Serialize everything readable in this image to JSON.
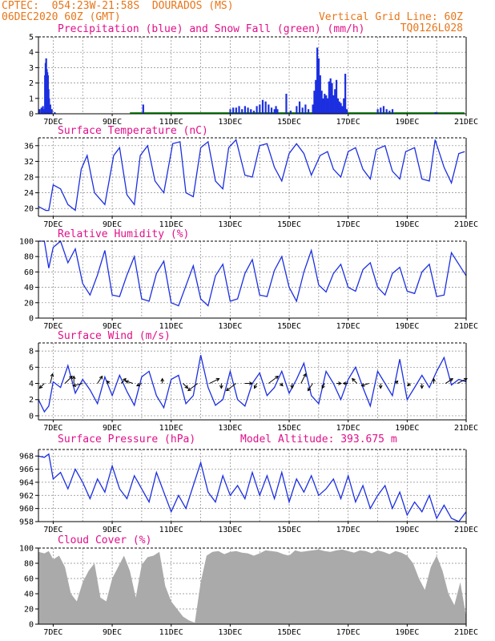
{
  "header": {
    "line1_left": "CPTEC:  054:23W-21:58S  DOURADOS (MS)",
    "line2_left": "06DEC2020 60Z (GMT)",
    "line2_right": "Vertical Grid Line: 60Z",
    "line3_right": "TQ0126L028"
  },
  "colors": {
    "header": "#e8761a",
    "panel_title": "#e0108a",
    "series_line": "#1c2fe0",
    "precip_bar": "#1c2fe0",
    "snow_line": "#1a9a1a",
    "cloud_fill": "#aaaaaa",
    "wind_arrow": "#000000",
    "grid": "#888888"
  },
  "x_axis": {
    "dates": [
      "7DEC",
      "9DEC",
      "11DEC",
      "13DEC",
      "15DEC",
      "17DEC",
      "19DEC",
      "21DEC"
    ],
    "start_day": 6.5,
    "end_day": 21.0
  },
  "chart_data": [
    {
      "type": "bar",
      "title": "Precipitation (blue) and Snow Fall (green) (mm/h)",
      "ylim": [
        0,
        5
      ],
      "yticks": [
        0,
        1,
        2,
        3,
        4,
        5
      ],
      "snow_values": "all 0",
      "series": [
        {
          "name": "Precipitation",
          "x": [
            6.54,
            6.6,
            6.65,
            6.7,
            6.72,
            6.74,
            6.76,
            6.78,
            6.8,
            6.82,
            6.84,
            6.86,
            6.9,
            6.95,
            7.05,
            10.05,
            13.0,
            13.1,
            13.2,
            13.3,
            13.4,
            13.5,
            13.6,
            13.7,
            13.8,
            13.9,
            14.0,
            14.1,
            14.2,
            14.3,
            14.4,
            14.5,
            14.55,
            14.6,
            14.9,
            15.05,
            15.25,
            15.35,
            15.45,
            15.55,
            15.65,
            15.8,
            15.85,
            15.9,
            15.95,
            16.0,
            16.05,
            16.1,
            16.15,
            16.2,
            16.25,
            16.3,
            16.35,
            16.4,
            16.45,
            16.5,
            16.55,
            16.6,
            16.65,
            16.7,
            16.75,
            16.8,
            16.85,
            16.9,
            16.95,
            18.0,
            18.1,
            18.2,
            18.3,
            18.4,
            18.5,
            19.95,
            20.0
          ],
          "values": [
            0.3,
            0.4,
            0.5,
            0.3,
            2.5,
            3.3,
            3.6,
            2.9,
            2.7,
            2.5,
            1.6,
            1.0,
            0.6,
            0.3,
            0.1,
            0.6,
            0.3,
            0.4,
            0.4,
            0.5,
            0.3,
            0.5,
            0.4,
            0.3,
            0.2,
            0.5,
            0.6,
            0.9,
            0.8,
            0.6,
            0.4,
            0.3,
            0.5,
            0.3,
            1.3,
            0.2,
            0.5,
            0.8,
            0.4,
            0.6,
            0.3,
            0.6,
            1.5,
            2.2,
            4.3,
            3.6,
            2.5,
            1.5,
            1.0,
            1.3,
            1.2,
            1.0,
            2.1,
            2.3,
            2.0,
            1.2,
            1.6,
            2.2,
            1.0,
            0.8,
            0.7,
            0.5,
            1.0,
            2.6,
            0.3,
            0.3,
            0.4,
            0.5,
            0.3,
            0.2,
            0.3,
            0.1,
            0.1
          ]
        }
      ]
    },
    {
      "type": "line",
      "title": "Surface Temperature (nC)",
      "ylim": [
        18,
        38
      ],
      "yticks": [
        20,
        24,
        28,
        32,
        36
      ],
      "series": [
        {
          "name": "Surface Temperature",
          "x": [
            6.5,
            6.75,
            6.85,
            7.0,
            7.25,
            7.5,
            7.75,
            7.95,
            8.15,
            8.4,
            8.75,
            9.05,
            9.25,
            9.5,
            9.75,
            9.95,
            10.2,
            10.45,
            10.75,
            11.05,
            11.3,
            11.5,
            11.75,
            12.0,
            12.25,
            12.5,
            12.75,
            12.95,
            13.2,
            13.5,
            13.75,
            14.0,
            14.25,
            14.5,
            14.75,
            15.0,
            15.25,
            15.5,
            15.75,
            16.05,
            16.3,
            16.5,
            16.75,
            17.0,
            17.25,
            17.5,
            17.75,
            17.95,
            18.25,
            18.5,
            18.75,
            18.95,
            19.25,
            19.5,
            19.75,
            19.95,
            20.25,
            20.5,
            20.75,
            20.95
          ],
          "values": [
            20.5,
            19.5,
            19.5,
            26.0,
            25.0,
            21.0,
            19.5,
            30.0,
            33.5,
            24.0,
            21.0,
            33.5,
            35.5,
            23.5,
            21.0,
            33.5,
            36.0,
            27.0,
            24.0,
            36.5,
            37.0,
            24.0,
            23.0,
            35.5,
            37.0,
            27.0,
            25.0,
            35.5,
            37.5,
            28.5,
            28.0,
            36.0,
            36.5,
            30.5,
            27.0,
            34.0,
            36.5,
            34.0,
            28.5,
            33.5,
            34.5,
            30.0,
            28.0,
            34.5,
            35.5,
            30.0,
            27.5,
            35.0,
            36.0,
            29.5,
            27.5,
            34.5,
            35.5,
            27.5,
            27.0,
            37.5,
            30.5,
            26.5,
            34.0,
            34.5
          ]
        }
      ]
    },
    {
      "type": "line",
      "title": "Relative Humidity (%)",
      "ylim": [
        0,
        100
      ],
      "yticks": [
        0,
        20,
        40,
        60,
        80,
        100
      ],
      "series": [
        {
          "name": "Relative Humidity",
          "x": [
            6.5,
            6.7,
            6.85,
            7.0,
            7.25,
            7.5,
            7.75,
            8.0,
            8.25,
            8.5,
            8.75,
            9.0,
            9.25,
            9.5,
            9.75,
            10.0,
            10.25,
            10.5,
            10.75,
            11.0,
            11.25,
            11.5,
            11.75,
            12.0,
            12.25,
            12.5,
            12.75,
            13.0,
            13.25,
            13.5,
            13.75,
            14.0,
            14.25,
            14.5,
            14.75,
            15.0,
            15.25,
            15.5,
            15.75,
            16.0,
            16.25,
            16.5,
            16.75,
            17.0,
            17.25,
            17.5,
            17.75,
            18.0,
            18.25,
            18.5,
            18.75,
            19.0,
            19.25,
            19.5,
            19.75,
            20.0,
            20.25,
            20.5,
            20.75,
            21.0
          ],
          "values": [
            100,
            100,
            65,
            92,
            100,
            72,
            90,
            45,
            30,
            56,
            88,
            30,
            28,
            56,
            80,
            25,
            22,
            58,
            74,
            20,
            16,
            42,
            68,
            25,
            16,
            55,
            70,
            22,
            25,
            58,
            76,
            30,
            28,
            62,
            80,
            40,
            22,
            60,
            88,
            43,
            34,
            58,
            70,
            40,
            35,
            63,
            72,
            40,
            30,
            58,
            66,
            35,
            32,
            60,
            70,
            28,
            30,
            85,
            70,
            55
          ]
        }
      ]
    },
    {
      "type": "line",
      "title": "Surface Wind (m/s)",
      "ylim": [
        -0.5,
        9
      ],
      "yticks": [
        0,
        2,
        4,
        6,
        8
      ],
      "series": [
        {
          "name": "Surface Wind",
          "x": [
            6.5,
            6.7,
            6.85,
            7.0,
            7.25,
            7.5,
            7.75,
            8.0,
            8.25,
            8.5,
            8.75,
            9.0,
            9.25,
            9.5,
            9.75,
            10.0,
            10.25,
            10.5,
            10.75,
            11.0,
            11.25,
            11.5,
            11.75,
            12.0,
            12.25,
            12.5,
            12.75,
            13.0,
            13.25,
            13.5,
            13.75,
            14.0,
            14.25,
            14.5,
            14.75,
            15.0,
            15.25,
            15.5,
            15.75,
            16.0,
            16.25,
            16.5,
            16.75,
            17.0,
            17.25,
            17.5,
            17.75,
            18.0,
            18.25,
            18.5,
            18.75,
            19.0,
            19.25,
            19.5,
            19.75,
            20.0,
            20.25,
            20.5,
            20.75,
            21.0
          ],
          "values": [
            2,
            0.5,
            1.2,
            4.2,
            3.5,
            6.2,
            2.8,
            4.5,
            3.2,
            1.5,
            4.8,
            2.5,
            5,
            3,
            1.3,
            4.8,
            5.5,
            2.5,
            1,
            4.5,
            5,
            1.5,
            2.5,
            7.5,
            3.5,
            1.3,
            2,
            5.5,
            2,
            1.2,
            4,
            5.3,
            2.5,
            3.5,
            5.5,
            2.8,
            4.5,
            6.5,
            2.5,
            1.5,
            5.5,
            4,
            2,
            4.5,
            6,
            3.5,
            1.2,
            5.5,
            4,
            2.5,
            7,
            2,
            3.5,
            5,
            3.5,
            5.5,
            7.2,
            3.8,
            4.5,
            4.2
          ]
        }
      ]
    },
    {
      "type": "line",
      "title": "Surface Pressure (hPa)",
      "annotation": "Model Altitude: 393.675 m",
      "ylim": [
        958,
        969
      ],
      "yticks": [
        958,
        960,
        962,
        964,
        966,
        968
      ],
      "series": [
        {
          "name": "Surface Pressure",
          "x": [
            6.5,
            6.7,
            6.85,
            7.0,
            7.25,
            7.5,
            7.75,
            8.0,
            8.25,
            8.5,
            8.75,
            9.0,
            9.25,
            9.5,
            9.75,
            10.0,
            10.25,
            10.5,
            10.75,
            11.0,
            11.25,
            11.5,
            11.75,
            12.0,
            12.25,
            12.5,
            12.75,
            13.0,
            13.25,
            13.5,
            13.75,
            14.0,
            14.25,
            14.5,
            14.75,
            15.0,
            15.25,
            15.5,
            15.75,
            16.0,
            16.25,
            16.5,
            16.75,
            17.0,
            17.25,
            17.5,
            17.75,
            18.0,
            18.25,
            18.5,
            18.75,
            19.0,
            19.25,
            19.5,
            19.75,
            20.0,
            20.25,
            20.5,
            20.75,
            21.0
          ],
          "values": [
            968,
            967.8,
            968.3,
            964.5,
            965.5,
            963,
            966,
            964,
            961.5,
            964.5,
            962.5,
            966.5,
            963,
            961.5,
            965,
            963,
            961,
            965.5,
            962.5,
            959.5,
            962,
            960,
            963.5,
            967,
            962.5,
            961,
            965,
            962,
            963.5,
            961.5,
            965.5,
            962,
            965,
            961.5,
            965.5,
            961,
            964.5,
            962.5,
            965,
            962,
            963,
            964.5,
            961.5,
            965,
            961,
            963.5,
            960,
            962,
            963.5,
            960,
            962.5,
            959,
            961,
            959.5,
            962,
            958.5,
            960.5,
            958.5,
            958,
            959.5
          ]
        }
      ]
    },
    {
      "type": "area",
      "title": "Cloud Cover (%)",
      "ylim": [
        0,
        100
      ],
      "yticks": [
        0,
        20,
        40,
        60,
        80,
        100
      ],
      "series": [
        {
          "name": "Cloud Cover",
          "x": [
            6.5,
            6.7,
            6.85,
            7.0,
            7.2,
            7.4,
            7.6,
            7.8,
            8.0,
            8.2,
            8.4,
            8.6,
            8.8,
            9.0,
            9.2,
            9.4,
            9.6,
            9.8,
            10.0,
            10.2,
            10.4,
            10.6,
            10.8,
            11.0,
            11.2,
            11.4,
            11.6,
            11.8,
            12.0,
            12.2,
            12.4,
            12.6,
            12.8,
            13.0,
            13.2,
            13.4,
            13.6,
            13.8,
            14.0,
            14.2,
            14.4,
            14.6,
            14.8,
            15.0,
            15.2,
            15.4,
            15.6,
            15.8,
            16.0,
            16.2,
            16.4,
            16.6,
            16.8,
            17.0,
            17.2,
            17.4,
            17.6,
            17.8,
            18.0,
            18.2,
            18.4,
            18.6,
            18.8,
            19.0,
            19.2,
            19.4,
            19.6,
            19.8,
            20.0,
            20.2,
            20.4,
            20.6,
            20.8,
            21.0
          ],
          "values": [
            95,
            93,
            96,
            85,
            90,
            75,
            40,
            30,
            55,
            70,
            80,
            35,
            30,
            60,
            75,
            90,
            70,
            35,
            78,
            88,
            90,
            95,
            50,
            30,
            20,
            10,
            5,
            2,
            55,
            90,
            95,
            96,
            92,
            95,
            96,
            94,
            93,
            90,
            93,
            97,
            96,
            95,
            92,
            90,
            97,
            95,
            96,
            97,
            98,
            96,
            95,
            97,
            98,
            96,
            94,
            97,
            96,
            93,
            97,
            95,
            92,
            96,
            94,
            90,
            80,
            60,
            45,
            75,
            90,
            70,
            40,
            25,
            55,
            10
          ]
        }
      ]
    }
  ],
  "wind_vectors": {
    "note_days": "arrow tail positions in days and speed/direction as u,v (m/s)",
    "x": [
      6.7,
      6.9,
      7.4,
      7.7,
      8.0,
      8.5,
      8.9,
      9.3,
      9.7,
      10.0,
      10.7,
      11.4,
      11.9,
      12.3,
      12.7,
      13.2,
      13.5,
      13.9,
      14.3,
      14.7,
      15.1,
      15.4,
      15.8,
      16.2,
      16.6,
      17.0,
      17.3,
      17.7,
      18.1,
      18.6,
      19.1,
      19.5,
      19.9,
      20.3,
      20.7
    ],
    "u": [
      -1,
      0.5,
      1.5,
      0,
      -2,
      1,
      -0.5,
      1,
      -1.5,
      -1,
      0,
      1,
      -2,
      2,
      0,
      -2,
      1.5,
      -0.5,
      2,
      0.5,
      0,
      1,
      -1,
      -0.5,
      1,
      -1,
      -1,
      -1.5,
      0,
      0.5,
      -0.5,
      0,
      0,
      1.5,
      2
    ],
    "v": [
      -1,
      2,
      1.5,
      1.5,
      -0.5,
      1.5,
      0.5,
      1,
      0.5,
      -0.5,
      1,
      -1,
      -1.5,
      1,
      -1,
      -1.5,
      0,
      -1,
      1.5,
      -0.5,
      -1,
      2,
      -1.5,
      -1,
      0,
      0,
      1,
      -0.5,
      -1,
      0.5,
      -0.5,
      -1,
      1,
      1,
      1
    ]
  }
}
